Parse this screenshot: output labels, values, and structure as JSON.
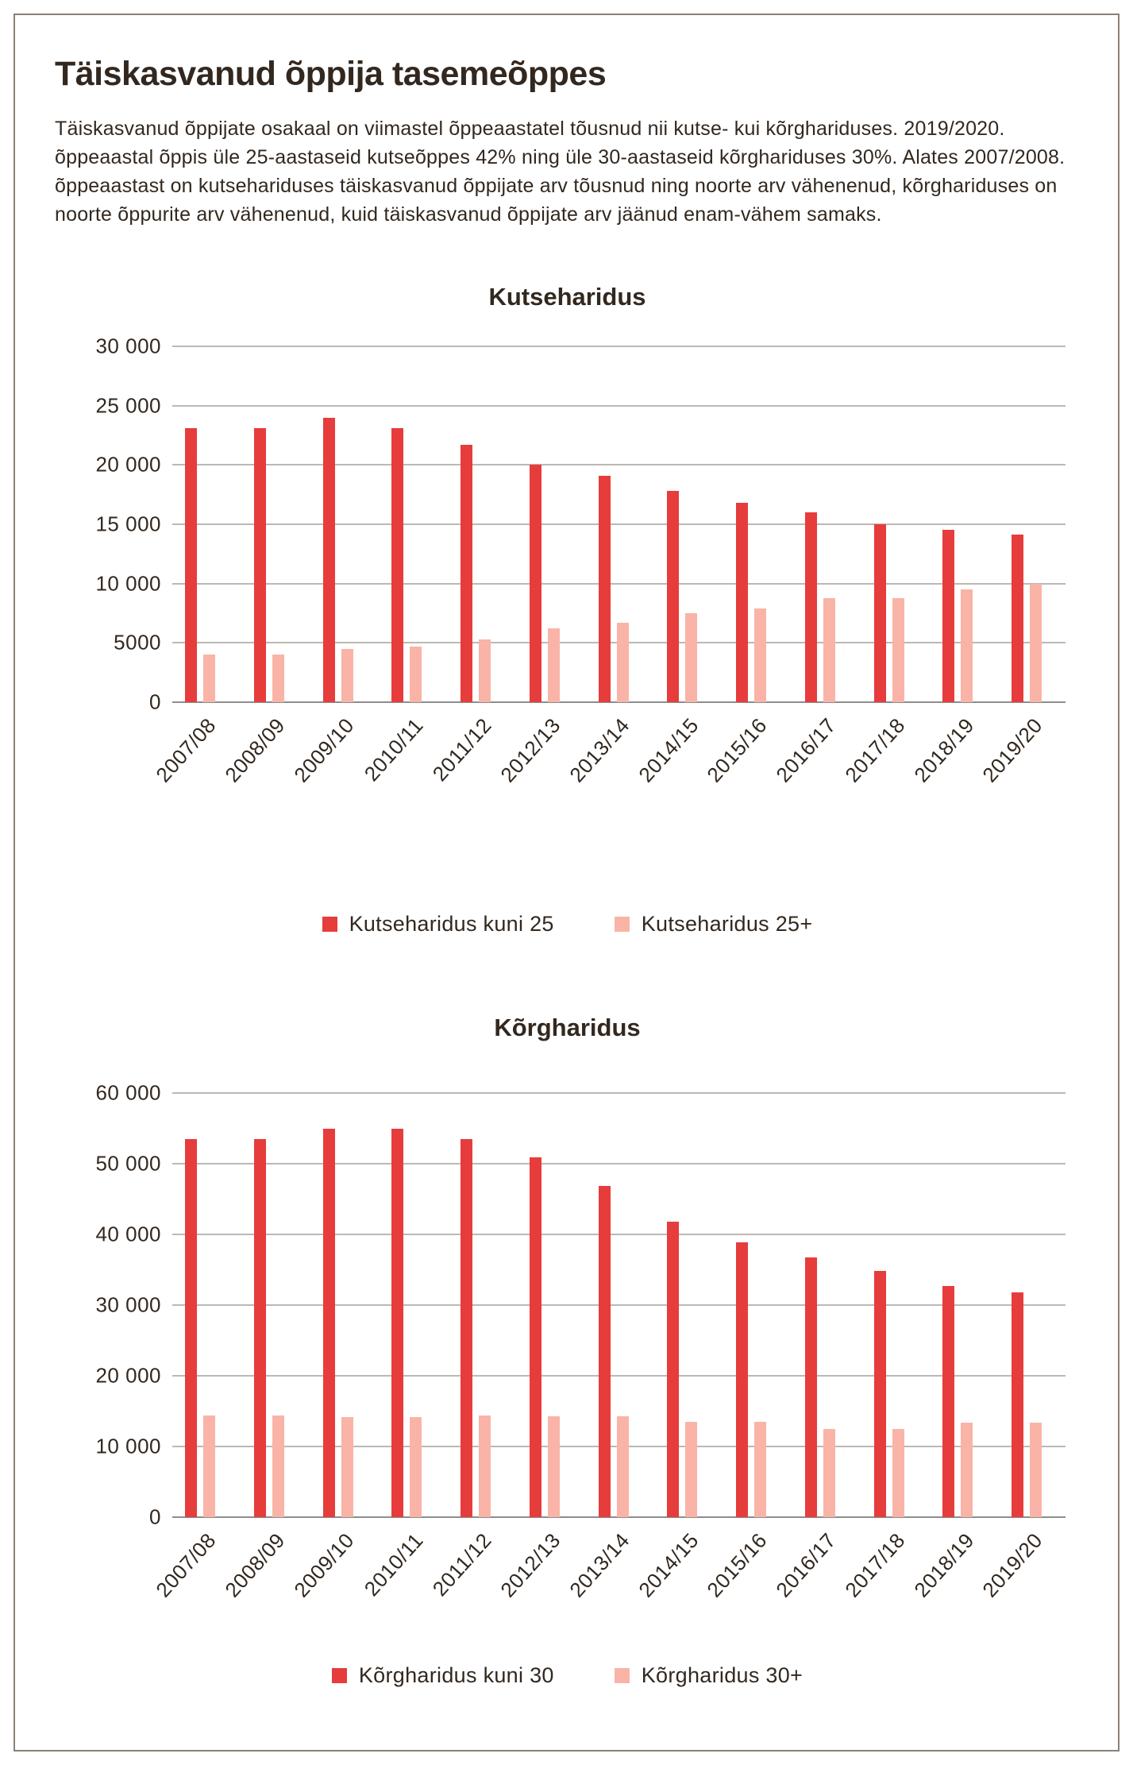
{
  "page": {
    "title": "Täiskasvanud õppija tasemeõppes",
    "intro": "Täiskasvanud õppijate osakaal on viimastel õppeaastatel tõusnud nii kutse- kui kõrghariduses. 2019/2020. õppeaastal õppis üle 25-aastaseid kutseõppes 42% ning üle 30-aastaseid kõrghariduses 30%. Alates 2007/2008. õppeaastast on kutsehariduses täiskasvanud õppijate arv tõusnud ning noorte arv vähenenud, kõrghariduses on noorte õppurite arv vähenenud, kuid täiskasvanud õppijate arv jäänud enam-vähem samaks."
  },
  "colors": {
    "red": "#e73c3c",
    "pink": "#f9b4a7",
    "text": "#32281f",
    "grid": "#bdb8b4",
    "axis": "#8d8d8d",
    "frame": "#8b8177"
  },
  "chart_data": [
    {
      "type": "bar",
      "title": "Kutseharidus",
      "categories": [
        "2007/08",
        "2008/09",
        "2009/10",
        "2010/11",
        "2011/12",
        "2012/13",
        "2013/14",
        "2014/15",
        "2015/16",
        "2016/17",
        "2017/18",
        "2018/19",
        "2019/20"
      ],
      "series": [
        {
          "name": "Kutseharidus kuni 25",
          "color_key": "red",
          "values": [
            23100,
            23100,
            24000,
            23100,
            21700,
            20000,
            19100,
            17800,
            16800,
            16000,
            15000,
            14500,
            14100
          ]
        },
        {
          "name": "Kutseharidus 25+",
          "color_key": "pink",
          "values": [
            4000,
            4000,
            4500,
            4700,
            5300,
            6200,
            6700,
            7500,
            7900,
            8800,
            8800,
            9500,
            10000
          ]
        }
      ],
      "ylim": [
        0,
        30000
      ],
      "ytick_step": 5000,
      "ytick_labels": [
        "30 000",
        "25 000",
        "20 000",
        "15 000",
        "10 000",
        "5000",
        "0"
      ],
      "grid": "horizontal",
      "legend_position": "bottom"
    },
    {
      "type": "bar",
      "title": "Kõrgharidus",
      "categories": [
        "2007/08",
        "2008/09",
        "2009/10",
        "2010/11",
        "2011/12",
        "2012/13",
        "2013/14",
        "2014/15",
        "2015/16",
        "2016/17",
        "2017/18",
        "2018/19",
        "2019/20"
      ],
      "series": [
        {
          "name": "Kõrgharidus kuni 30",
          "color_key": "red",
          "values": [
            53500,
            53500,
            55000,
            55000,
            53500,
            50900,
            46800,
            41800,
            38900,
            36700,
            34800,
            32700,
            31800
          ]
        },
        {
          "name": "Kõrgharidus 30+",
          "color_key": "pink",
          "values": [
            14400,
            14400,
            14200,
            14200,
            14400,
            14300,
            14300,
            13500,
            13500,
            12500,
            12500,
            13400,
            13400
          ]
        }
      ],
      "ylim": [
        0,
        60000
      ],
      "ytick_step": 10000,
      "ytick_labels": [
        "60 000",
        "50 000",
        "40 000",
        "30 000",
        "20 000",
        "10 000",
        "0"
      ],
      "grid": "horizontal",
      "legend_position": "bottom"
    }
  ]
}
